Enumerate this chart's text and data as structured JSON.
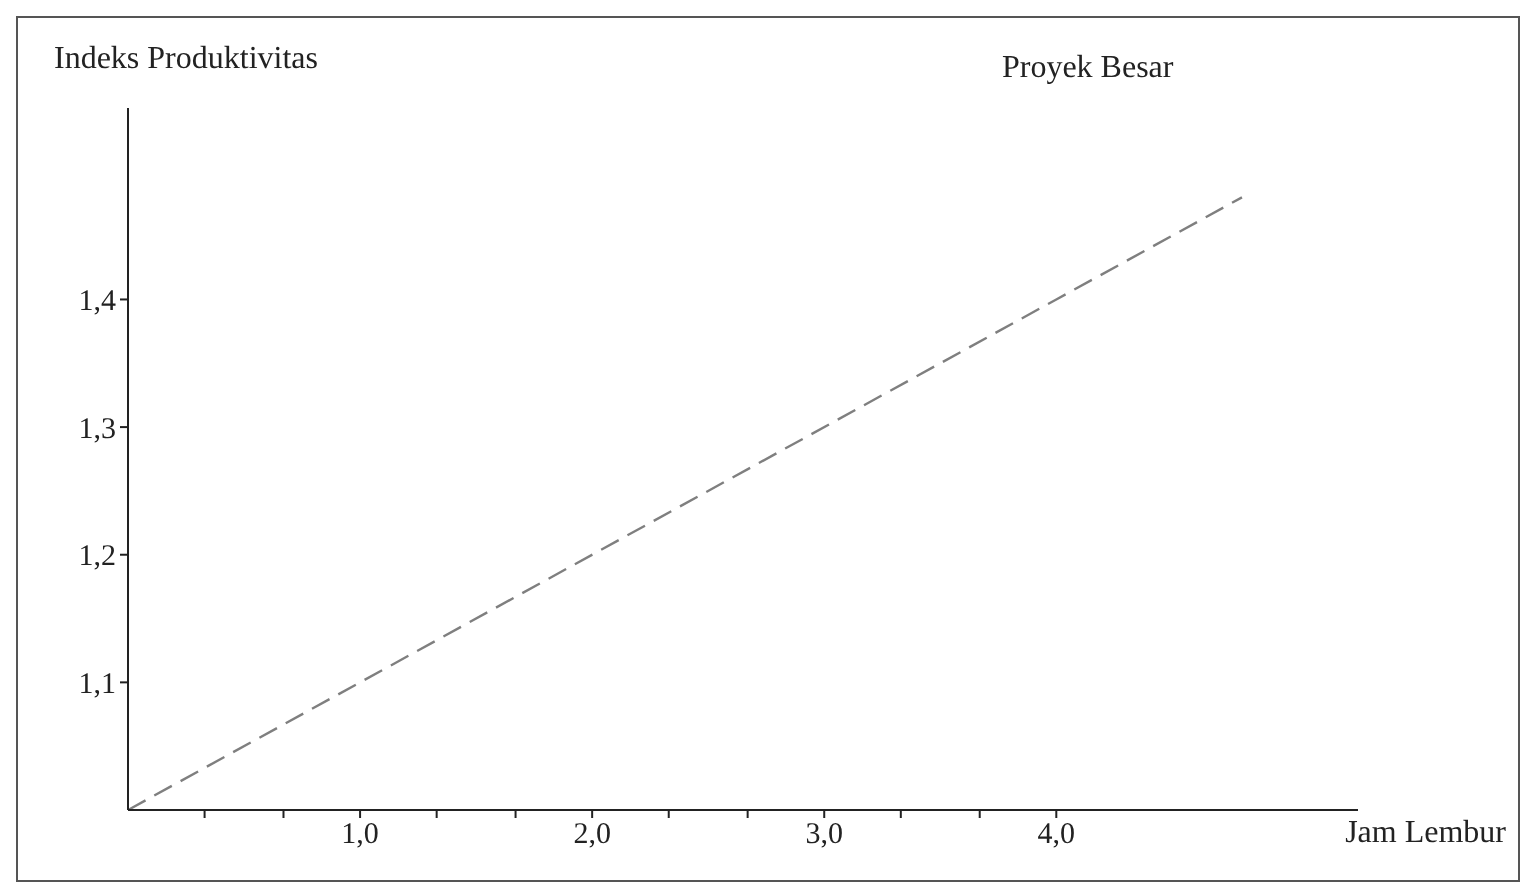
{
  "chart_data": {
    "type": "line",
    "xlabel": "Jam Lembur",
    "ylabel": "Indeks Produktivitas",
    "x": [
      0,
      4.0,
      4.8
    ],
    "series": [
      {
        "name": "Proyek Besar",
        "color": "#7f7f7f",
        "values": [
          1.0,
          1.4,
          1.48
        ]
      }
    ],
    "xlim": [
      0,
      5.3
    ],
    "ylim": [
      1.0,
      1.55
    ],
    "xticks": [
      {
        "value": 0.33,
        "label": null
      },
      {
        "value": 0.67,
        "label": null
      },
      {
        "value": 1,
        "label": "1,0"
      },
      {
        "value": 1.33,
        "label": null
      },
      {
        "value": 1.67,
        "label": null
      },
      {
        "value": 2,
        "label": "2,0"
      },
      {
        "value": 2.33,
        "label": null
      },
      {
        "value": 2.67,
        "label": null
      },
      {
        "value": 3,
        "label": "3,0"
      },
      {
        "value": 3.33,
        "label": null
      },
      {
        "value": 3.67,
        "label": null
      },
      {
        "value": 4,
        "label": "4,0"
      }
    ],
    "yticks": [
      {
        "value": 1.1,
        "label": "1,1"
      },
      {
        "value": 1.2,
        "label": "1,2"
      },
      {
        "value": 1.3,
        "label": "1,3"
      },
      {
        "value": 1.4,
        "label": "1,4"
      }
    ],
    "grid": false,
    "legend": false,
    "marker": "none",
    "line_style": "dashed"
  }
}
